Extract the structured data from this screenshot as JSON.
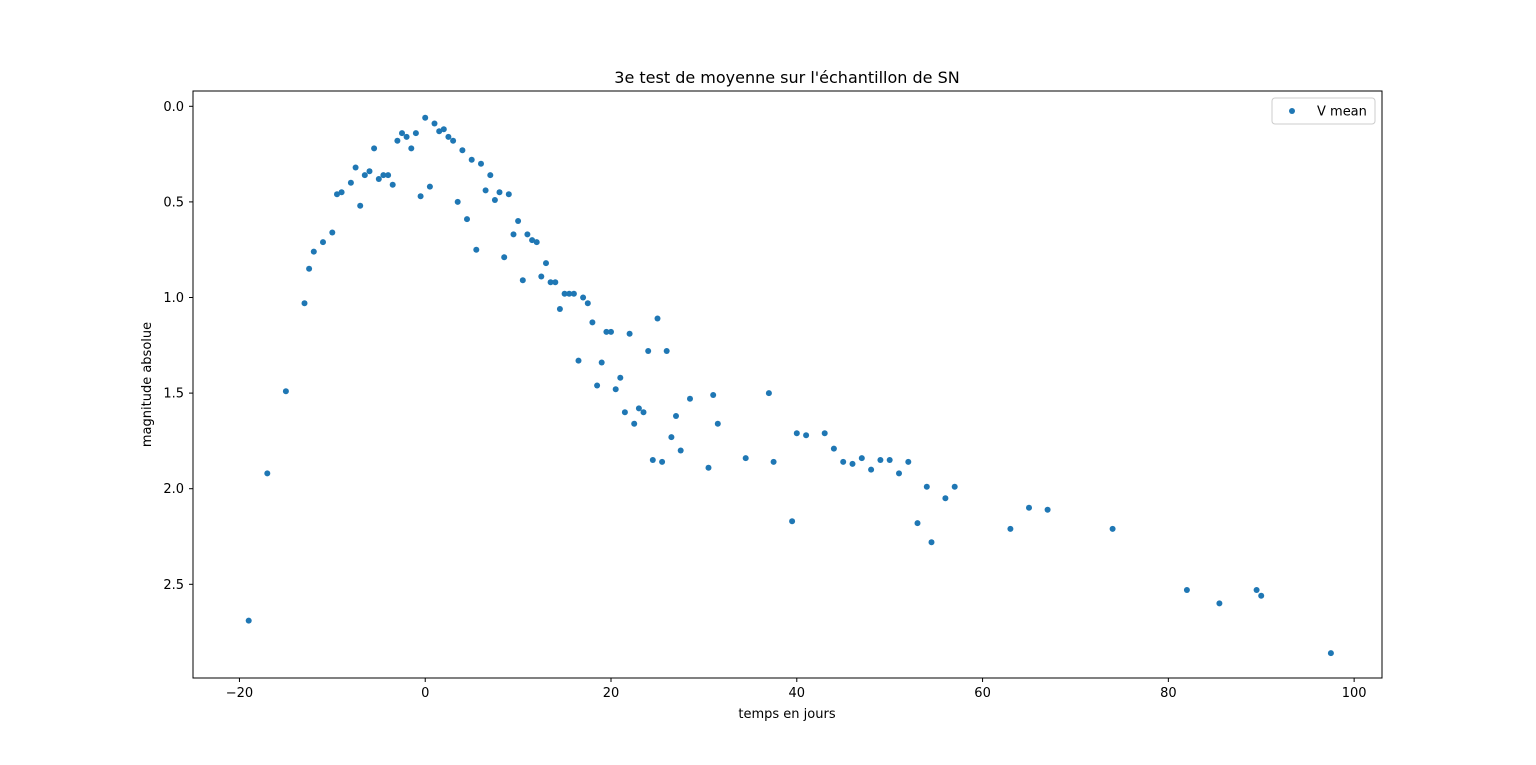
{
  "chart_data": {
    "type": "scatter",
    "title": "3e test de moyenne sur l'échantillon de SN",
    "xlabel": "temps en jours",
    "ylabel": "magnitude absolue",
    "xlim": [
      -25,
      103
    ],
    "ylim": [
      2.99,
      -0.08
    ],
    "y_inverted": true,
    "grid": false,
    "legend_position": "upper right",
    "x_ticks": [
      {
        "value": -20,
        "label": "−20"
      },
      {
        "value": 0,
        "label": "0"
      },
      {
        "value": 20,
        "label": "20"
      },
      {
        "value": 40,
        "label": "40"
      },
      {
        "value": 60,
        "label": "60"
      },
      {
        "value": 80,
        "label": "80"
      },
      {
        "value": 100,
        "label": "100"
      }
    ],
    "y_ticks": [
      {
        "value": 0.0,
        "label": "0.0"
      },
      {
        "value": 0.5,
        "label": "0.5"
      },
      {
        "value": 1.0,
        "label": "1.0"
      },
      {
        "value": 1.5,
        "label": "1.5"
      },
      {
        "value": 2.0,
        "label": "2.0"
      },
      {
        "value": 2.5,
        "label": "2.5"
      }
    ],
    "series": [
      {
        "name": "V mean",
        "color": "#1f77b4",
        "marker": "dot",
        "points": [
          [
            -19.0,
            2.69
          ],
          [
            -17.0,
            1.92
          ],
          [
            -15.0,
            1.49
          ],
          [
            -13.0,
            1.03
          ],
          [
            -12.5,
            0.85
          ],
          [
            -12.0,
            0.76
          ],
          [
            -11.0,
            0.71
          ],
          [
            -10.0,
            0.66
          ],
          [
            -9.5,
            0.46
          ],
          [
            -9.0,
            0.45
          ],
          [
            -8.0,
            0.4
          ],
          [
            -7.5,
            0.32
          ],
          [
            -7.0,
            0.52
          ],
          [
            -6.5,
            0.36
          ],
          [
            -6.0,
            0.34
          ],
          [
            -5.5,
            0.22
          ],
          [
            -5.0,
            0.38
          ],
          [
            -4.5,
            0.36
          ],
          [
            -4.0,
            0.36
          ],
          [
            -3.5,
            0.41
          ],
          [
            -3.0,
            0.18
          ],
          [
            -2.5,
            0.14
          ],
          [
            -2.0,
            0.16
          ],
          [
            -1.5,
            0.22
          ],
          [
            -1.0,
            0.14
          ],
          [
            -0.5,
            0.47
          ],
          [
            0.0,
            0.06
          ],
          [
            0.5,
            0.42
          ],
          [
            1.0,
            0.09
          ],
          [
            1.5,
            0.13
          ],
          [
            2.0,
            0.12
          ],
          [
            2.5,
            0.16
          ],
          [
            3.0,
            0.18
          ],
          [
            3.5,
            0.5
          ],
          [
            4.0,
            0.23
          ],
          [
            4.5,
            0.59
          ],
          [
            5.0,
            0.28
          ],
          [
            5.5,
            0.75
          ],
          [
            6.0,
            0.3
          ],
          [
            6.5,
            0.44
          ],
          [
            7.0,
            0.36
          ],
          [
            7.5,
            0.49
          ],
          [
            8.0,
            0.45
          ],
          [
            8.5,
            0.79
          ],
          [
            9.0,
            0.46
          ],
          [
            9.5,
            0.67
          ],
          [
            10.0,
            0.6
          ],
          [
            10.5,
            0.91
          ],
          [
            11.0,
            0.67
          ],
          [
            11.5,
            0.7
          ],
          [
            12.0,
            0.71
          ],
          [
            12.5,
            0.89
          ],
          [
            13.0,
            0.82
          ],
          [
            13.5,
            0.92
          ],
          [
            14.0,
            0.92
          ],
          [
            14.5,
            1.06
          ],
          [
            15.0,
            0.98
          ],
          [
            15.5,
            0.98
          ],
          [
            16.0,
            0.98
          ],
          [
            16.5,
            1.33
          ],
          [
            17.0,
            1.0
          ],
          [
            17.5,
            1.03
          ],
          [
            18.0,
            1.13
          ],
          [
            18.5,
            1.46
          ],
          [
            19.0,
            1.34
          ],
          [
            19.5,
            1.18
          ],
          [
            20.0,
            1.18
          ],
          [
            20.5,
            1.48
          ],
          [
            21.0,
            1.42
          ],
          [
            21.5,
            1.6
          ],
          [
            22.0,
            1.19
          ],
          [
            22.5,
            1.66
          ],
          [
            23.0,
            1.58
          ],
          [
            23.5,
            1.6
          ],
          [
            24.0,
            1.28
          ],
          [
            24.5,
            1.85
          ],
          [
            25.0,
            1.11
          ],
          [
            25.5,
            1.86
          ],
          [
            26.0,
            1.28
          ],
          [
            26.5,
            1.73
          ],
          [
            27.0,
            1.62
          ],
          [
            27.5,
            1.8
          ],
          [
            28.5,
            1.53
          ],
          [
            30.5,
            1.89
          ],
          [
            31.0,
            1.51
          ],
          [
            31.5,
            1.66
          ],
          [
            34.5,
            1.84
          ],
          [
            37.0,
            1.5
          ],
          [
            37.5,
            1.86
          ],
          [
            39.5,
            2.17
          ],
          [
            40.0,
            1.71
          ],
          [
            41.0,
            1.72
          ],
          [
            43.0,
            1.71
          ],
          [
            44.0,
            1.79
          ],
          [
            45.0,
            1.86
          ],
          [
            46.0,
            1.87
          ],
          [
            47.0,
            1.84
          ],
          [
            48.0,
            1.9
          ],
          [
            49.0,
            1.85
          ],
          [
            50.0,
            1.85
          ],
          [
            51.0,
            1.92
          ],
          [
            52.0,
            1.86
          ],
          [
            53.0,
            2.18
          ],
          [
            54.0,
            1.99
          ],
          [
            54.5,
            2.28
          ],
          [
            56.0,
            2.05
          ],
          [
            57.0,
            1.99
          ],
          [
            63.0,
            2.21
          ],
          [
            65.0,
            2.1
          ],
          [
            67.0,
            2.11
          ],
          [
            74.0,
            2.21
          ],
          [
            82.0,
            2.53
          ],
          [
            85.5,
            2.6
          ],
          [
            89.5,
            2.53
          ],
          [
            90.0,
            2.56
          ],
          [
            97.5,
            2.86
          ]
        ]
      }
    ]
  }
}
